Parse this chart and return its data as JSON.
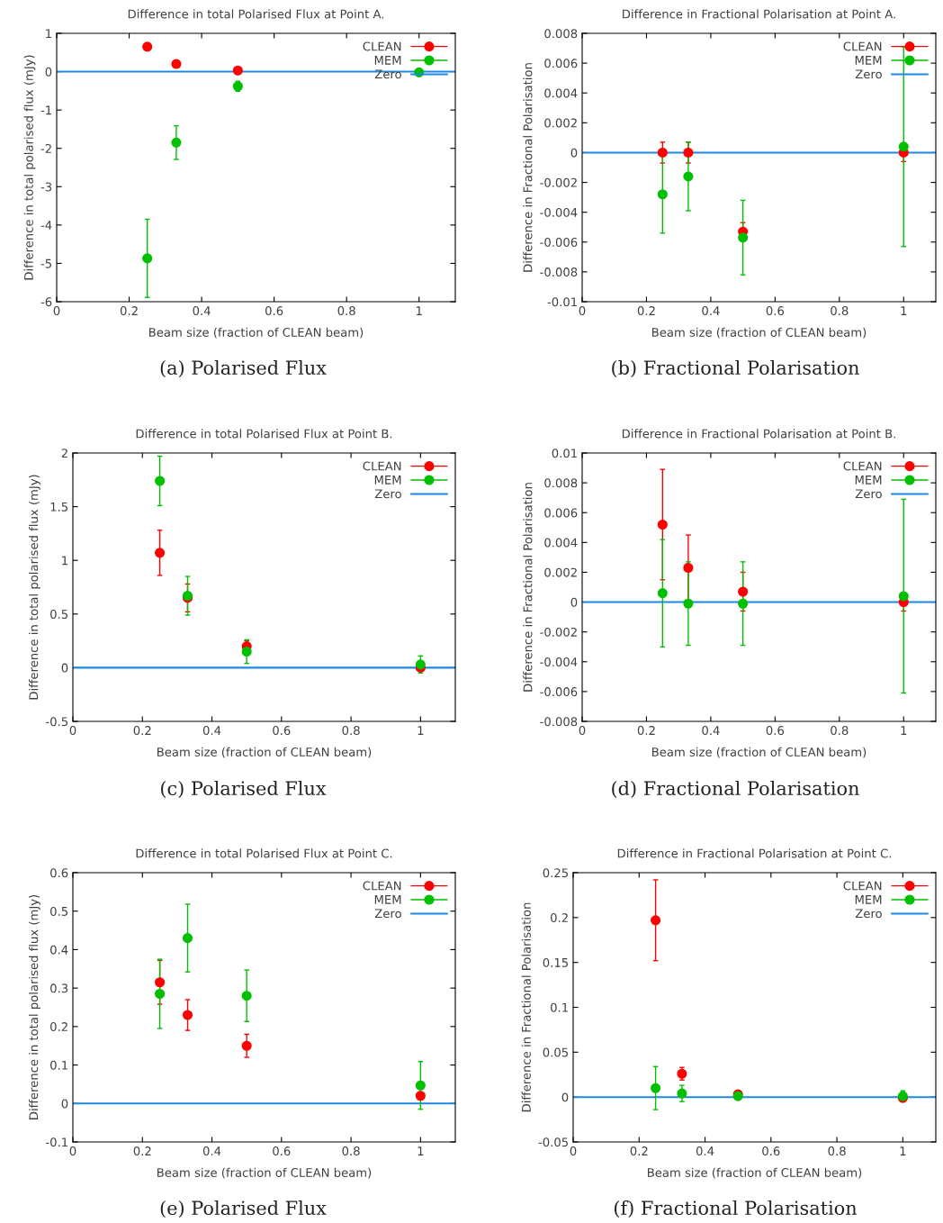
{
  "chart_data": [
    {
      "type": "scatter",
      "title": "Difference in total Polarised Flux at Point A.",
      "xlabel": "Beam size (fraction of CLEAN beam)",
      "ylabel": "Difference in total polarised flux (mJy)",
      "annotations": [
        "(a) Polarised Flux"
      ],
      "x": [
        0.25,
        0.33,
        0.5,
        1
      ],
      "xlim": [
        0,
        1.1
      ],
      "xticks": [
        0,
        0.2,
        0.4,
        0.6,
        0.8,
        1
      ],
      "ylim": [
        -6,
        1
      ],
      "yticks": [
        -6,
        -5,
        -4,
        -3,
        -2,
        -1,
        0,
        1
      ],
      "marker": "circle",
      "legend": "top right",
      "grid": false,
      "series": [
        {
          "name": "CLEAN",
          "color": "#ff0000",
          "values": [
            0.65,
            0.2,
            0.03,
            null
          ],
          "errors": [
            0.08,
            0.05,
            0.05,
            null
          ]
        },
        {
          "name": "MEM",
          "color": "#00c000",
          "values": [
            -4.87,
            -1.85,
            -0.38,
            -0.02
          ],
          "errors": [
            1.02,
            0.44,
            0.13,
            0.03
          ]
        }
      ],
      "ref_lines": [
        {
          "axis": "y",
          "value": 0,
          "label": "Zero",
          "color": "#1e88e5"
        }
      ]
    },
    {
      "type": "scatter",
      "title": "Difference in Fractional Polarisation at Point A.",
      "xlabel": "Beam size (fraction of CLEAN beam)",
      "ylabel": "Difference in Fractional Polarisation",
      "annotations": [
        "(b) Fractional Polarisation"
      ],
      "x": [
        0.25,
        0.33,
        0.5,
        1
      ],
      "xlim": [
        0,
        1.1
      ],
      "xticks": [
        0,
        0.2,
        0.4,
        0.6,
        0.8,
        1
      ],
      "ylim": [
        -0.01,
        0.008
      ],
      "yticks": [
        -0.01,
        -0.008,
        -0.006,
        -0.004,
        -0.002,
        0,
        0.002,
        0.004,
        0.006,
        0.008
      ],
      "marker": "circle",
      "legend": "top right",
      "grid": false,
      "series": [
        {
          "name": "CLEAN",
          "color": "#ff0000",
          "values": [
            0.0,
            0.0,
            -0.0053,
            0.0
          ],
          "errors": [
            0.0007,
            0.0007,
            0.0006,
            0.0006
          ]
        },
        {
          "name": "MEM",
          "color": "#00c000",
          "values": [
            -0.0028,
            -0.0016,
            -0.0057,
            0.0004
          ],
          "errors": [
            0.0026,
            0.0023,
            0.0025,
            0.0067
          ]
        }
      ],
      "ref_lines": [
        {
          "axis": "y",
          "value": 0,
          "label": "Zero",
          "color": "#1e88e5"
        }
      ]
    },
    {
      "type": "scatter",
      "title": "Difference in total Polarised Flux at Point B.",
      "xlabel": "Beam size (fraction of CLEAN beam)",
      "ylabel": "Difference in total polarised flux (mJy)",
      "annotations": [
        "(c) Polarised Flux"
      ],
      "x": [
        0.25,
        0.33,
        0.5,
        1
      ],
      "xlim": [
        0,
        1.1
      ],
      "xticks": [
        0,
        0.2,
        0.4,
        0.6,
        0.8,
        1
      ],
      "ylim": [
        -0.5,
        2
      ],
      "yticks": [
        -0.5,
        0,
        0.5,
        1,
        1.5,
        2
      ],
      "marker": "circle",
      "legend": "top right",
      "grid": false,
      "series": [
        {
          "name": "CLEAN",
          "color": "#ff0000",
          "values": [
            1.07,
            0.65,
            0.2,
            0.0
          ],
          "errors": [
            0.21,
            0.13,
            0.05,
            0.03
          ]
        },
        {
          "name": "MEM",
          "color": "#00c000",
          "values": [
            1.74,
            0.67,
            0.15,
            0.03
          ],
          "errors": [
            0.23,
            0.18,
            0.11,
            0.08
          ]
        }
      ],
      "ref_lines": [
        {
          "axis": "y",
          "value": 0,
          "label": "Zero",
          "color": "#1e88e5"
        }
      ]
    },
    {
      "type": "scatter",
      "title": "Difference in Fractional Polarisation at Point B.",
      "xlabel": "Beam size (fraction of CLEAN beam)",
      "ylabel": "Difference in Fractional Polarisation",
      "annotations": [
        "(d) Fractional Polarisation"
      ],
      "x": [
        0.25,
        0.33,
        0.5,
        1
      ],
      "xlim": [
        0,
        1.1
      ],
      "xticks": [
        0,
        0.2,
        0.4,
        0.6,
        0.8,
        1
      ],
      "ylim": [
        -0.008,
        0.01
      ],
      "yticks": [
        -0.008,
        -0.006,
        -0.004,
        -0.002,
        0,
        0.002,
        0.004,
        0.006,
        0.008,
        0.01
      ],
      "marker": "circle",
      "legend": "top right",
      "grid": false,
      "series": [
        {
          "name": "CLEAN",
          "color": "#ff0000",
          "values": [
            0.0052,
            0.0023,
            0.0007,
            0.0
          ],
          "errors": [
            0.0037,
            0.0022,
            0.0013,
            0.0006
          ]
        },
        {
          "name": "MEM",
          "color": "#00c000",
          "values": [
            0.0006,
            -0.0001,
            -0.0001,
            0.0004
          ],
          "errors": [
            0.0036,
            0.0028,
            0.0028,
            0.0065
          ]
        }
      ],
      "ref_lines": [
        {
          "axis": "y",
          "value": 0,
          "label": "Zero",
          "color": "#1e88e5"
        }
      ]
    },
    {
      "type": "scatter",
      "title": "Difference in total Polarised Flux at Point C.",
      "xlabel": "Beam size (fraction of CLEAN beam)",
      "ylabel": "Difference in total polarised flux (mJy)",
      "annotations": [
        "(e) Polarised Flux"
      ],
      "x": [
        0.25,
        0.33,
        0.5,
        1
      ],
      "xlim": [
        0,
        1.1
      ],
      "xticks": [
        0,
        0.2,
        0.4,
        0.6,
        0.8,
        1
      ],
      "ylim": [
        -0.1,
        0.6
      ],
      "yticks": [
        -0.1,
        0,
        0.1,
        0.2,
        0.3,
        0.4,
        0.5,
        0.6
      ],
      "marker": "circle",
      "legend": "top right",
      "grid": false,
      "series": [
        {
          "name": "CLEAN",
          "color": "#ff0000",
          "values": [
            0.315,
            0.23,
            0.15,
            0.02
          ],
          "errors": [
            0.057,
            0.04,
            0.03,
            0.01
          ]
        },
        {
          "name": "MEM",
          "color": "#00c000",
          "values": [
            0.285,
            0.43,
            0.28,
            0.047
          ],
          "errors": [
            0.09,
            0.088,
            0.067,
            0.062
          ]
        }
      ],
      "ref_lines": [
        {
          "axis": "y",
          "value": 0,
          "label": "Zero",
          "color": "#1e88e5"
        }
      ]
    },
    {
      "type": "scatter",
      "title": "Difference in Fractional Polarisation at Point C.",
      "xlabel": "Beam size (fraction of CLEAN beam)",
      "ylabel": "Difference in Fractional Polarisation",
      "annotations": [
        "(f) Fractional Polarisation"
      ],
      "x": [
        0.25,
        0.33,
        0.5,
        1
      ],
      "xlim": [
        0,
        1.1
      ],
      "xticks": [
        0,
        0.2,
        0.4,
        0.6,
        0.8,
        1
      ],
      "ylim": [
        -0.05,
        0.25
      ],
      "yticks": [
        -0.05,
        0,
        0.05,
        0.1,
        0.15,
        0.2,
        0.25
      ],
      "marker": "circle",
      "legend": "top right",
      "grid": false,
      "series": [
        {
          "name": "CLEAN",
          "color": "#ff0000",
          "values": [
            0.197,
            0.026,
            0.003,
            -0.001
          ],
          "errors": [
            0.045,
            0.007,
            0.002,
            0.004
          ]
        },
        {
          "name": "MEM",
          "color": "#00c000",
          "values": [
            0.01,
            0.004,
            0.001,
            0.001
          ],
          "errors": [
            0.024,
            0.009,
            0.003,
            0.006
          ]
        }
      ],
      "ref_lines": [
        {
          "axis": "y",
          "value": 0,
          "label": "Zero",
          "color": "#1e88e5"
        }
      ]
    }
  ]
}
